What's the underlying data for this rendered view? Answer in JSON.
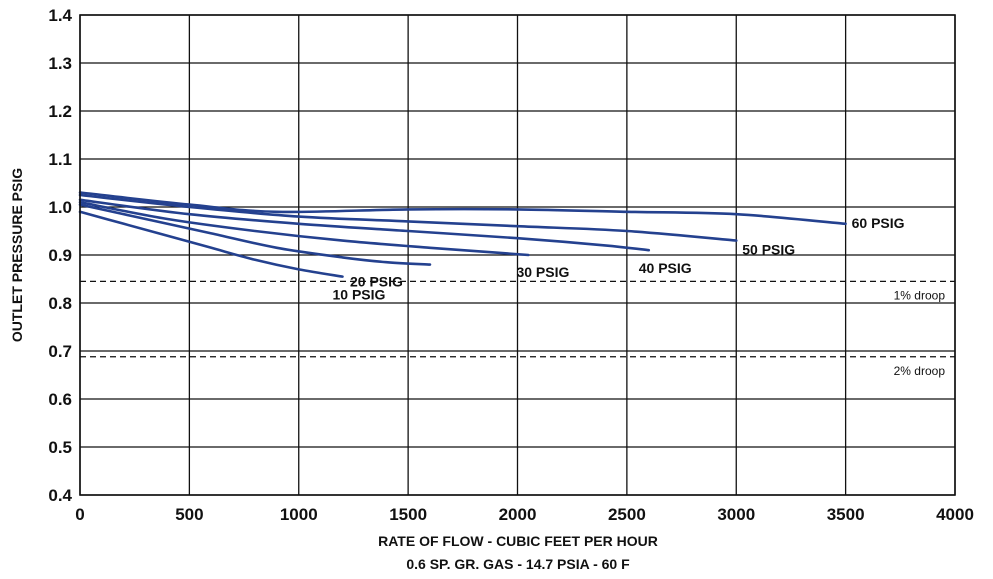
{
  "chart_data": {
    "type": "line",
    "xlabel": "RATE OF FLOW - CUBIC FEET PER HOUR",
    "xlabel_sub": "0.6 SP. GR. GAS - 14.7 PSIA - 60 F",
    "ylabel": "OUTLET PRESSURE PSIG",
    "xlim": [
      0,
      4000
    ],
    "ylim": [
      0.4,
      1.4
    ],
    "x_ticks": [
      "0",
      "500",
      "1000",
      "1500",
      "2000",
      "2500",
      "3000",
      "3500",
      "4000"
    ],
    "y_ticks": [
      "0.4",
      "0.5",
      "0.6",
      "0.7",
      "0.8",
      "0.9",
      "1.0",
      "1.1",
      "1.2",
      "1.3",
      "1.4"
    ],
    "grid": true,
    "line_color": "#24418f",
    "series": [
      {
        "name": "10 PSIG",
        "x": [
          0,
          200,
          400,
          600,
          800,
          1000,
          1200
        ],
        "y": [
          0.99,
          0.965,
          0.94,
          0.915,
          0.89,
          0.87,
          0.855
        ]
      },
      {
        "name": "20 PSIG",
        "x": [
          0,
          300,
          600,
          900,
          1200,
          1400,
          1600
        ],
        "y": [
          1.005,
          0.975,
          0.945,
          0.915,
          0.895,
          0.885,
          0.88
        ]
      },
      {
        "name": "30 PSIG",
        "x": [
          0,
          400,
          800,
          1200,
          1600,
          1900,
          2050
        ],
        "y": [
          1.01,
          0.975,
          0.95,
          0.93,
          0.915,
          0.905,
          0.9
        ]
      },
      {
        "name": "40 PSIG",
        "x": [
          0,
          500,
          1000,
          1500,
          2000,
          2400,
          2600
        ],
        "y": [
          1.015,
          0.985,
          0.965,
          0.95,
          0.935,
          0.92,
          0.91
        ]
      },
      {
        "name": "50 PSIG",
        "x": [
          0,
          500,
          1000,
          1500,
          2000,
          2500,
          3000
        ],
        "y": [
          1.025,
          1.0,
          0.98,
          0.97,
          0.96,
          0.95,
          0.93
        ]
      },
      {
        "name": "60 PSIG",
        "x": [
          0,
          500,
          900,
          1500,
          2000,
          2500,
          3000,
          3500
        ],
        "y": [
          1.03,
          1.005,
          0.99,
          0.995,
          0.995,
          0.99,
          0.985,
          0.965
        ]
      }
    ],
    "reference_lines": [
      {
        "label": "1% droop",
        "y": 0.845,
        "style": "dashed"
      },
      {
        "label": "2% droop",
        "y": 0.688,
        "style": "dashed"
      }
    ]
  }
}
